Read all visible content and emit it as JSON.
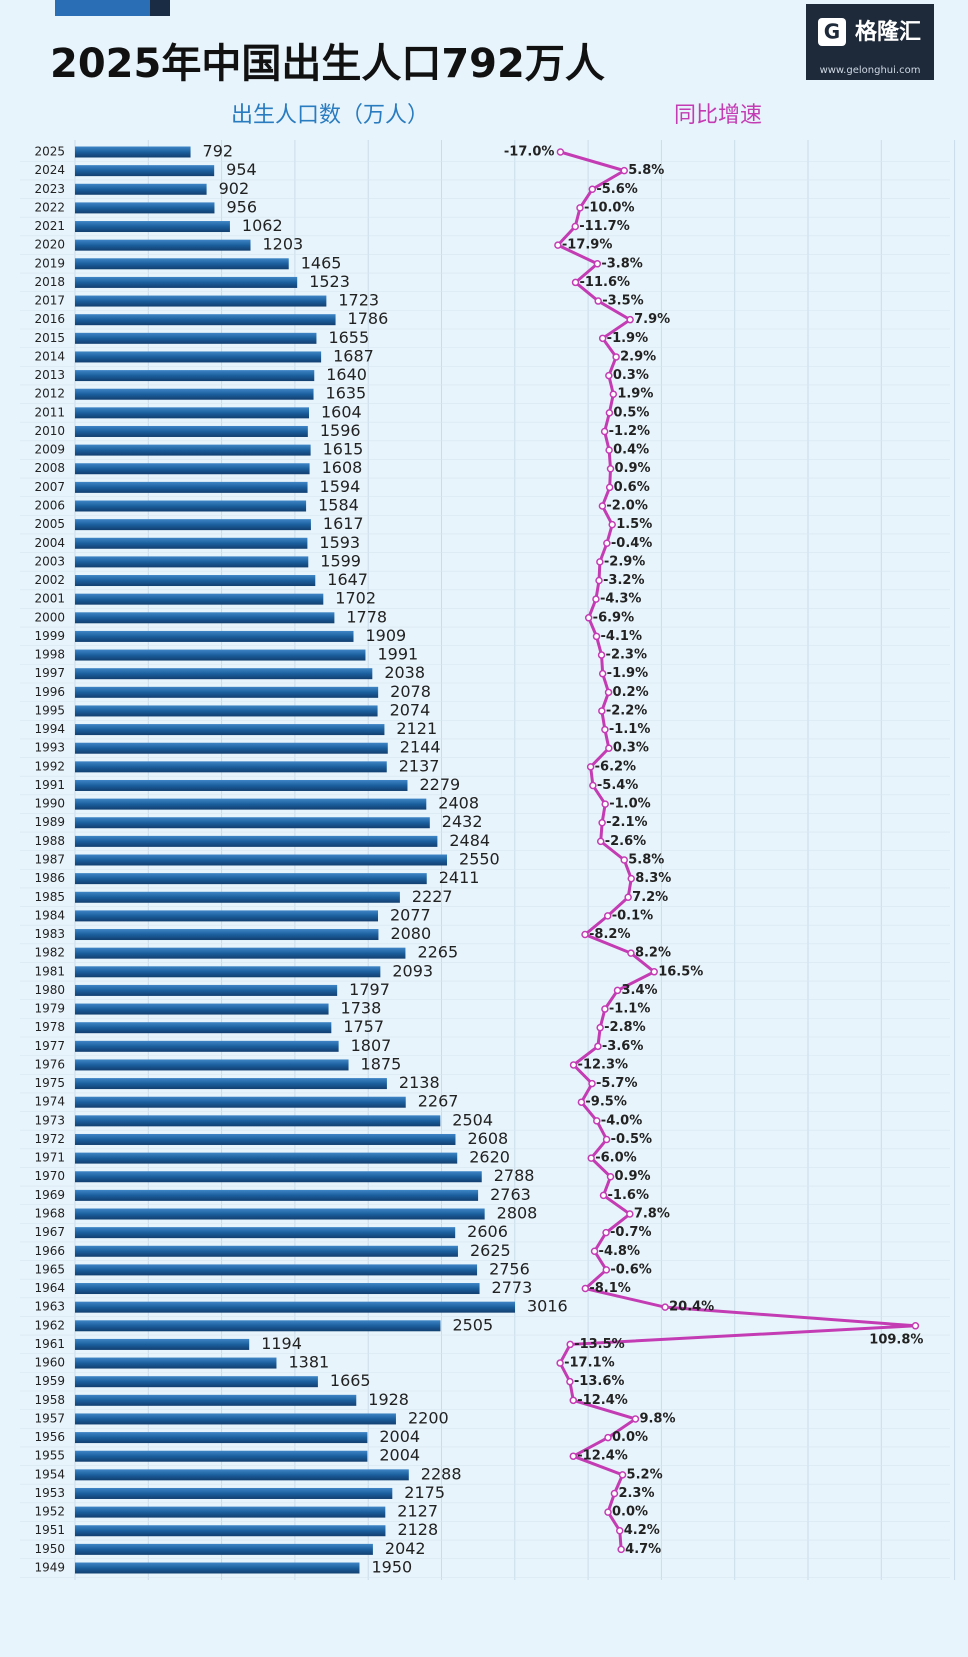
{
  "chart_data": {
    "type": "bar-line",
    "title": "2025年中国出生人口792万人",
    "source": {
      "name": "格隆汇",
      "url": "www.gelonghui.com"
    },
    "categories": [
      "2025",
      "2024",
      "2023",
      "2022",
      "2021",
      "2020",
      "2019",
      "2018",
      "2017",
      "2016",
      "2015",
      "2014",
      "2013",
      "2012",
      "2011",
      "2010",
      "2009",
      "2008",
      "2007",
      "2006",
      "2005",
      "2004",
      "2003",
      "2002",
      "2001",
      "2000",
      "1999",
      "1998",
      "1997",
      "1996",
      "1995",
      "1994",
      "1993",
      "1992",
      "1991",
      "1990",
      "1989",
      "1988",
      "1987",
      "1986",
      "1985",
      "1984",
      "1983",
      "1982",
      "1981",
      "1980",
      "1979",
      "1978",
      "1977",
      "1976",
      "1975",
      "1974",
      "1973",
      "1972",
      "1971",
      "1970",
      "1969",
      "1968",
      "1967",
      "1966",
      "1965",
      "1964",
      "1963",
      "1962",
      "1961",
      "1960",
      "1959",
      "1958",
      "1957",
      "1956",
      "1955",
      "1954",
      "1953",
      "1952",
      "1951",
      "1950",
      "1949"
    ],
    "series": [
      {
        "name": "出生人口数（万人）",
        "color": "#1b5f9e",
        "values": [
          792,
          954,
          902,
          956,
          1062,
          1203,
          1465,
          1523,
          1723,
          1786,
          1655,
          1687,
          1640,
          1635,
          1604,
          1596,
          1615,
          1608,
          1594,
          1584,
          1617,
          1593,
          1599,
          1647,
          1702,
          1778,
          1909,
          1991,
          2038,
          2078,
          2074,
          2121,
          2144,
          2137,
          2279,
          2408,
          2432,
          2484,
          2550,
          2411,
          2227,
          2077,
          2080,
          2265,
          2093,
          1797,
          1738,
          1757,
          1807,
          1875,
          2138,
          2267,
          2504,
          2608,
          2620,
          2788,
          2763,
          2808,
          2606,
          2625,
          2756,
          2773,
          3016,
          2505,
          1194,
          1381,
          1665,
          1928,
          2200,
          2004,
          2004,
          2288,
          2175,
          2127,
          2128,
          2042,
          1950
        ]
      },
      {
        "name": "同比增速",
        "color": "#c43cb4",
        "values": [
          -17.0,
          5.8,
          -5.6,
          -10.0,
          -11.7,
          -17.9,
          -3.8,
          -11.6,
          -3.5,
          7.9,
          -1.9,
          2.9,
          0.3,
          1.9,
          0.5,
          -1.2,
          0.4,
          0.9,
          0.6,
          -2.0,
          1.5,
          -0.4,
          -2.9,
          -3.2,
          -4.3,
          -6.9,
          -4.1,
          -2.3,
          -1.9,
          0.2,
          -2.2,
          -1.1,
          0.3,
          -6.2,
          -5.4,
          -1.0,
          -2.1,
          -2.6,
          5.8,
          8.3,
          7.2,
          -0.1,
          -8.2,
          8.2,
          16.5,
          3.4,
          -1.1,
          -2.8,
          -3.6,
          -12.3,
          -5.7,
          -9.5,
          -4.0,
          -0.5,
          -6.0,
          0.9,
          -1.6,
          7.8,
          -0.7,
          -4.8,
          -0.6,
          -8.1,
          20.4,
          109.8,
          -13.5,
          -17.1,
          -13.6,
          -12.4,
          9.8,
          0.0,
          -12.4,
          5.2,
          2.3,
          0.0,
          4.2,
          4.7,
          null
        ],
        "value_labels": [
          "-17.0%",
          "5.8%",
          "-5.6%",
          "-10.0%",
          "-11.7%",
          "-17.9%",
          "-3.8%",
          "-11.6%",
          "-3.5%",
          "7.9%",
          "-1.9%",
          "2.9%",
          "0.3%",
          "1.9%",
          "0.5%",
          "-1.2%",
          "0.4%",
          "0.9%",
          "0.6%",
          "-2.0%",
          "1.5%",
          "-0.4%",
          "-2.9%",
          "-3.2%",
          "-4.3%",
          "-6.9%",
          "-4.1%",
          "-2.3%",
          "-1.9%",
          "0.2%",
          "-2.2%",
          "-1.1%",
          "0.3%",
          "-6.2%",
          "-5.4%",
          "-1.0%",
          "-2.1%",
          "-2.6%",
          "5.8%",
          "8.3%",
          "7.2%",
          "-0.1%",
          "-8.2%",
          "8.2%",
          "16.5%",
          "3.4%",
          "-1.1%",
          "-2.8%",
          "-3.6%",
          "-12.3%",
          "-5.7%",
          "-9.5%",
          "-4.0%",
          "-0.5%",
          "-6.0%",
          "0.9%",
          "-1.6%",
          "7.8%",
          "-0.7%",
          "-4.8%",
          "-0.6%",
          "-8.1%",
          "20.4%",
          "109.8%",
          "-13.5%",
          "-17.1%",
          "-13.6%",
          "-12.4%",
          "9.8%",
          "0.0%",
          "-12.4%",
          "5.2%",
          "2.3%",
          "0.0%",
          "4.2%",
          "4.7%",
          null
        ]
      }
    ]
  }
}
